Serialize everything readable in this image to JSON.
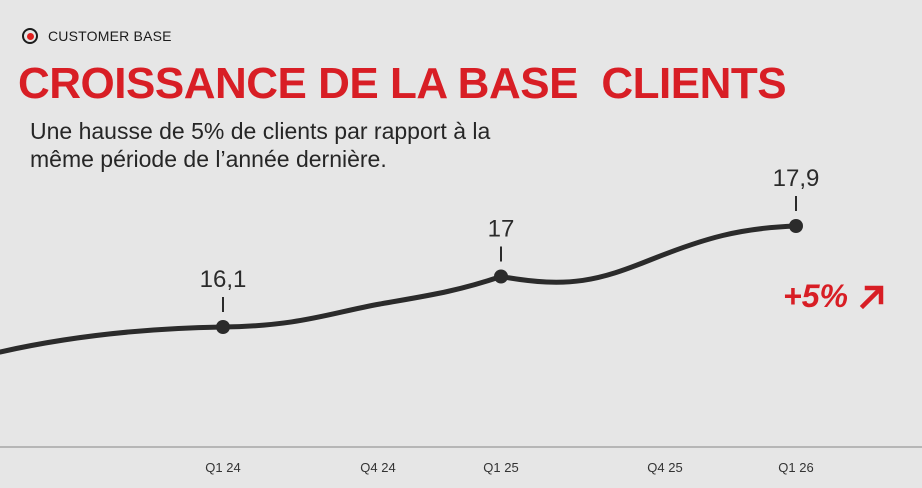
{
  "header": {
    "tag_label": "CUSTOMER BASE",
    "tag_icon": "target-icon",
    "title": "CROISSANCE DE LA BASE  CLIENTS",
    "subtitle": "Une hausse de 5% de clients par rapport à la même période de l’année dernière."
  },
  "badge": {
    "text": "+5%",
    "icon": "arrow-up-right-icon"
  },
  "colors": {
    "accent": "#d81e25",
    "line": "#2b2b2b",
    "background": "#e6e6e6"
  },
  "chart_data": {
    "type": "line",
    "x": [
      "Q1 24",
      "Q4 24",
      "Q1 25",
      "Q4 25",
      "Q1 26"
    ],
    "x_tick_labels": [
      "Q1 24",
      "Q4 24",
      "Q1 25",
      "Q4 25",
      "Q1 26"
    ],
    "series": [
      {
        "points": [
          {
            "x": "Q1 24",
            "y": 16.1,
            "label": "16,1"
          },
          {
            "x": "Q1 25",
            "y": 17,
            "label": "17"
          },
          {
            "x": "Q1 26",
            "y": 17.9,
            "label": "17,9"
          }
        ]
      }
    ],
    "title": "",
    "xlabel": "",
    "ylabel": "",
    "grid": false,
    "smooth": true
  }
}
